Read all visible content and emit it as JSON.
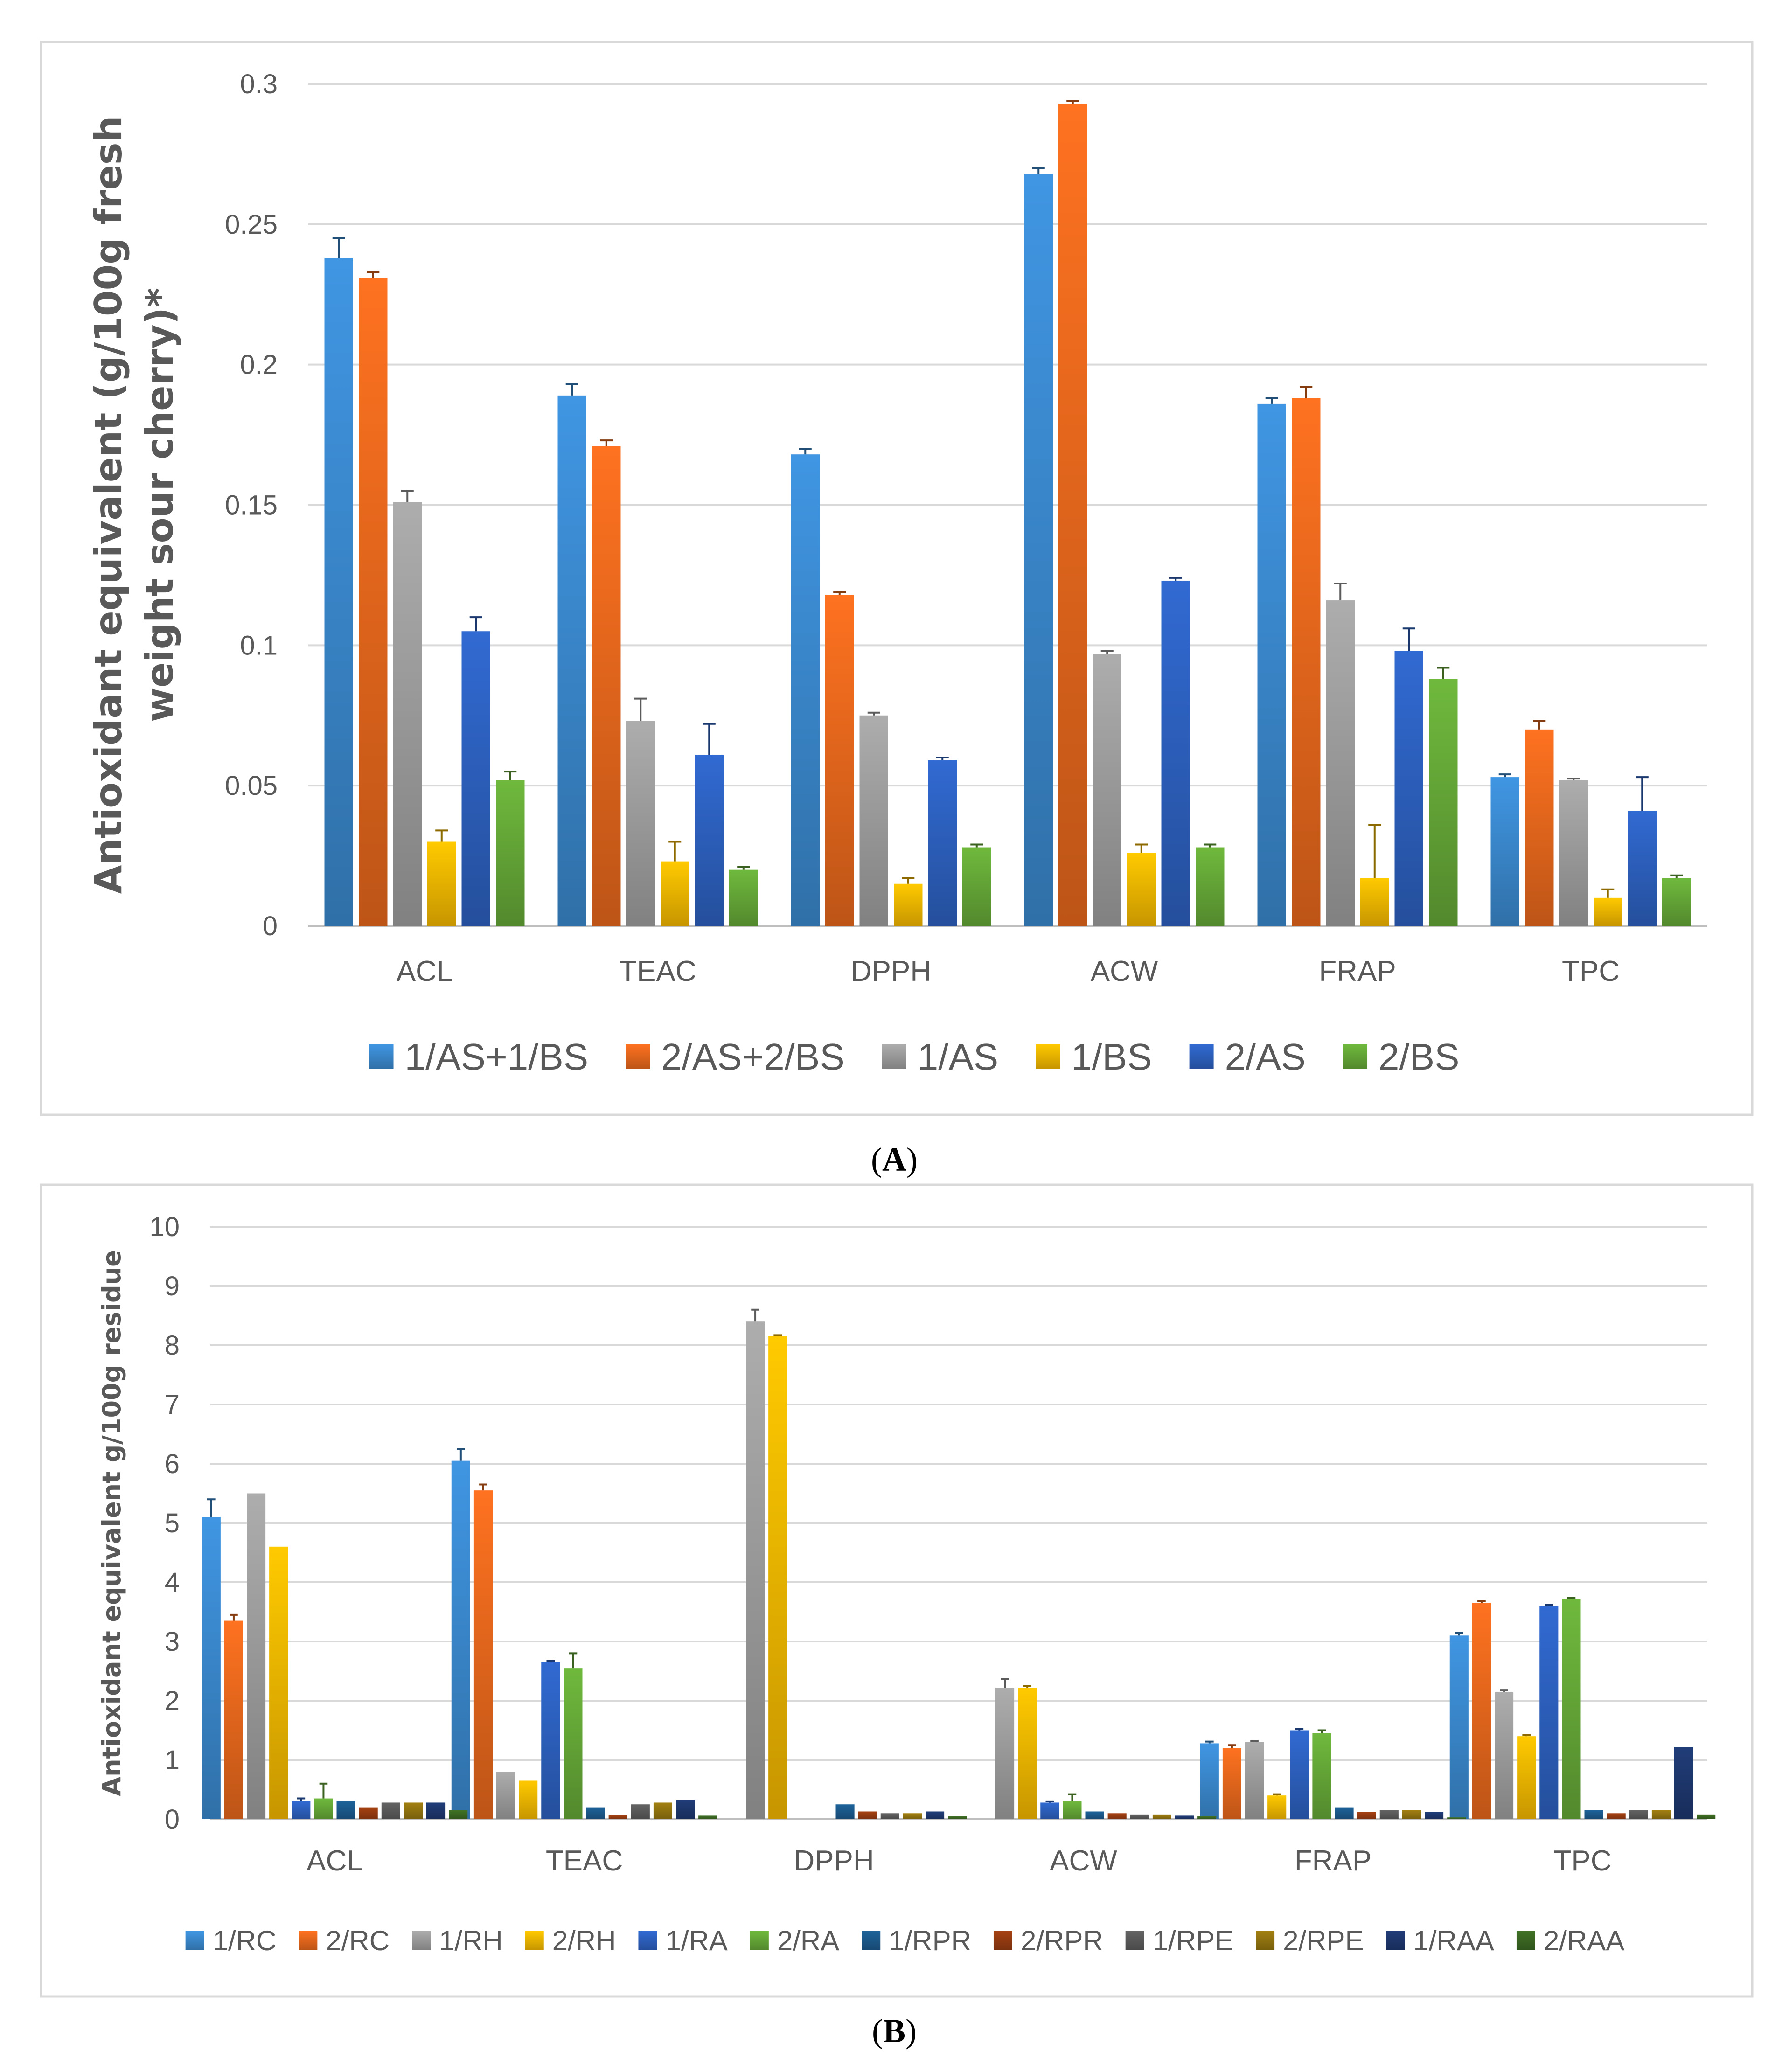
{
  "colors": {
    "c1": "#3D8FD8",
    "c2": "#F26D1E",
    "c3": "#A5A5A5",
    "c4": "#FFC000",
    "c5": "#2F65C8",
    "c6": "#6AB03A",
    "c7": "#1D5E93",
    "c8": "#9E3F12",
    "c9": "#5F5F5F",
    "c10": "#9A7A10",
    "c11": "#1F3A73",
    "c12": "#3E6D24"
  },
  "chart_data": [
    {
      "id": "A",
      "type": "bar",
      "panel_label": "A",
      "ylabel": "Antioxidant equivalent (g/100g fresh weight sour cherry)*",
      "ylabel_lines": [
        "Antioxidant equivalent (g/100g fresh",
        "weight sour cherry)*"
      ],
      "ylim": [
        0,
        0.3
      ],
      "ytick_values": [
        0,
        0.05,
        0.1,
        0.15,
        0.2,
        0.25,
        0.3
      ],
      "ytick_labels": [
        "0",
        "0.05",
        "0.1",
        "0.15",
        "0.2",
        "0.25",
        "0.3"
      ],
      "grid": true,
      "legend_position": "bottom",
      "categories": [
        "ACL",
        "TEAC",
        "DPPH",
        "ACW",
        "FRAP",
        "TPC"
      ],
      "series": [
        {
          "name": "1/AS+1/BS",
          "color": "#3D8FD8",
          "values": [
            0.238,
            0.189,
            0.168,
            0.268,
            0.186,
            0.053
          ],
          "errors": [
            0.007,
            0.004,
            0.002,
            0.002,
            0.002,
            0.001
          ]
        },
        {
          "name": "2/AS+2/BS",
          "color": "#F26D1E",
          "values": [
            0.231,
            0.171,
            0.118,
            0.293,
            0.188,
            0.07
          ],
          "errors": [
            0.002,
            0.002,
            0.001,
            0.001,
            0.004,
            0.003
          ]
        },
        {
          "name": "1/AS",
          "color": "#A5A5A5",
          "values": [
            0.151,
            0.073,
            0.075,
            0.097,
            0.116,
            0.052
          ],
          "errors": [
            0.004,
            0.008,
            0.001,
            0.001,
            0.006,
            0.0005
          ]
        },
        {
          "name": "1/BS",
          "color": "#FFC000",
          "values": [
            0.03,
            0.023,
            0.015,
            0.026,
            0.017,
            0.01
          ],
          "errors": [
            0.004,
            0.007,
            0.002,
            0.003,
            0.019,
            0.003
          ]
        },
        {
          "name": "2/AS",
          "color": "#2F65C8",
          "values": [
            0.105,
            0.061,
            0.059,
            0.123,
            0.098,
            0.041
          ],
          "errors": [
            0.005,
            0.011,
            0.001,
            0.001,
            0.008,
            0.012
          ]
        },
        {
          "name": "2/BS",
          "color": "#6AB03A",
          "values": [
            0.052,
            0.02,
            0.028,
            0.028,
            0.088,
            0.017
          ],
          "errors": [
            0.003,
            0.001,
            0.001,
            0.001,
            0.004,
            0.001
          ]
        }
      ]
    },
    {
      "id": "B",
      "type": "bar",
      "panel_label": "B",
      "ylabel": "Antioxidant equivalent g/100g residue",
      "ylim": [
        0,
        10
      ],
      "ytick_values": [
        0,
        1,
        2,
        3,
        4,
        5,
        6,
        7,
        8,
        9,
        10
      ],
      "ytick_labels": [
        "0",
        "1",
        "2",
        "3",
        "4",
        "5",
        "6",
        "7",
        "8",
        "9",
        "10"
      ],
      "grid": true,
      "legend_position": "bottom",
      "categories": [
        "ACL",
        "TEAC",
        "DPPH",
        "ACW",
        "FRAP",
        "TPC"
      ],
      "series": [
        {
          "name": "1/RC",
          "color": "#3D8FD8",
          "values": [
            5.1,
            6.05,
            0,
            0,
            1.28,
            3.1
          ],
          "errors": [
            0.3,
            0.2,
            0,
            0,
            0.03,
            0.05
          ]
        },
        {
          "name": "2/RC",
          "color": "#F26D1E",
          "values": [
            3.35,
            5.55,
            0,
            0,
            1.2,
            3.65
          ],
          "errors": [
            0.1,
            0.1,
            0,
            0,
            0.05,
            0.03
          ]
        },
        {
          "name": "1/RH",
          "color": "#A5A5A5",
          "values": [
            5.5,
            0.8,
            8.4,
            2.22,
            1.3,
            2.15
          ],
          "errors": [
            0,
            0,
            0.2,
            0.15,
            0.02,
            0.03
          ]
        },
        {
          "name": "2/RH",
          "color": "#FFC000",
          "values": [
            4.6,
            0.65,
            8.15,
            2.22,
            0.4,
            1.4
          ],
          "errors": [
            0,
            0,
            0.02,
            0.03,
            0.02,
            0.02
          ]
        },
        {
          "name": "1/RA",
          "color": "#2F65C8",
          "values": [
            0.3,
            2.65,
            0,
            0.28,
            1.5,
            3.6
          ],
          "errors": [
            0.05,
            0.02,
            0,
            0.02,
            0.02,
            0.02
          ]
        },
        {
          "name": "2/RA",
          "color": "#6AB03A",
          "values": [
            0.35,
            2.55,
            0,
            0.3,
            1.45,
            3.72
          ],
          "errors": [
            0.25,
            0.25,
            0,
            0.12,
            0.05,
            0.02
          ]
        },
        {
          "name": "1/RPR",
          "color": "#1D5E93",
          "values": [
            0.3,
            0.2,
            0.25,
            0.13,
            0.2,
            0.15
          ],
          "errors": [
            0,
            0,
            0,
            0,
            0,
            0
          ]
        },
        {
          "name": "2/RPR",
          "color": "#9E3F12",
          "values": [
            0.2,
            0.07,
            0.13,
            0.1,
            0.12,
            0.1
          ],
          "errors": [
            0,
            0,
            0,
            0,
            0,
            0
          ]
        },
        {
          "name": "1/RPE",
          "color": "#5F5F5F",
          "values": [
            0.28,
            0.25,
            0.1,
            0.08,
            0.15,
            0.15
          ],
          "errors": [
            0,
            0,
            0,
            0,
            0,
            0
          ]
        },
        {
          "name": "2/RPE",
          "color": "#9A7A10",
          "values": [
            0.28,
            0.28,
            0.1,
            0.08,
            0.15,
            0.15
          ],
          "errors": [
            0,
            0,
            0,
            0,
            0,
            0
          ]
        },
        {
          "name": "1/RAA",
          "color": "#1F3A73",
          "values": [
            0.28,
            0.33,
            0.13,
            0.06,
            0.12,
            1.22
          ],
          "errors": [
            0,
            0,
            0,
            0,
            0,
            0
          ]
        },
        {
          "name": "2/RAA",
          "color": "#3E6D24",
          "values": [
            0.15,
            0.06,
            0.05,
            0.05,
            0.03,
            0.08
          ],
          "errors": [
            0,
            0,
            0,
            0,
            0,
            0
          ]
        }
      ]
    }
  ]
}
